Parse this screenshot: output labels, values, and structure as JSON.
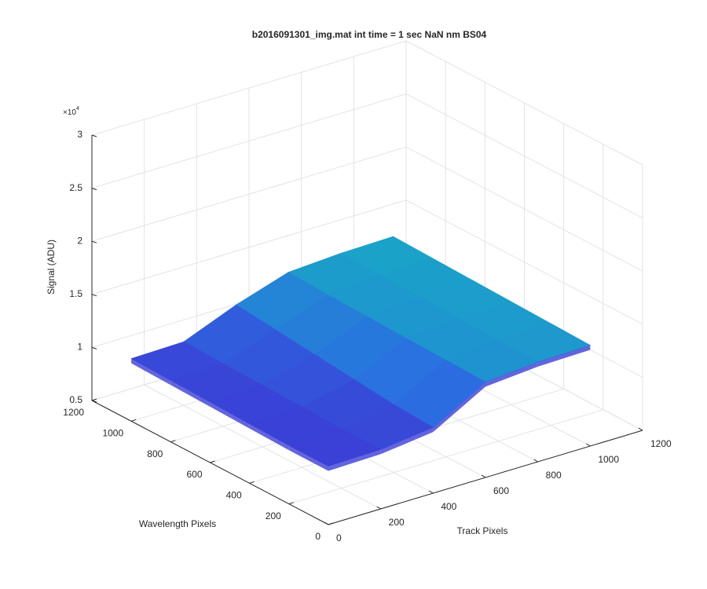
{
  "chart_data": {
    "type": "surface",
    "title": "b2016091301_img.mat int time = 1 sec  NaN nm BS04",
    "xlabel": "Track Pixels",
    "ylabel": "Wavelength Pixels",
    "zlabel": "Signal (ADU)",
    "z_multiplier": {
      "base": "×10",
      "exponent": "4"
    },
    "xlim": [
      0,
      1200
    ],
    "xticks": [
      0,
      200,
      400,
      600,
      800,
      1000,
      1200
    ],
    "ylim": [
      0,
      1200
    ],
    "yticks": [
      0,
      200,
      400,
      600,
      800,
      1000,
      1200
    ],
    "zlim": [
      0.5,
      3
    ],
    "zticks": [
      0.5,
      1,
      1.5,
      2,
      2.5,
      3
    ],
    "grid": true,
    "colormap": [
      "#3b3fd6",
      "#2a6fe0",
      "#1aa4c8"
    ],
    "x": [
      0,
      200,
      400,
      600,
      800,
      1000
    ],
    "y": [
      0,
      200,
      400,
      600,
      800,
      1000
    ],
    "z": [
      [
        1.05,
        1.05,
        1.06,
        1.07,
        1.08,
        1.09
      ],
      [
        1.06,
        1.06,
        1.07,
        1.08,
        1.09,
        1.1
      ],
      [
        1.12,
        1.14,
        1.18,
        1.22,
        1.26,
        1.3
      ],
      [
        1.4,
        1.41,
        1.42,
        1.43,
        1.44,
        1.46
      ],
      [
        1.44,
        1.45,
        1.46,
        1.47,
        1.48,
        1.49
      ],
      [
        1.45,
        1.46,
        1.47,
        1.48,
        1.49,
        1.5
      ]
    ]
  }
}
